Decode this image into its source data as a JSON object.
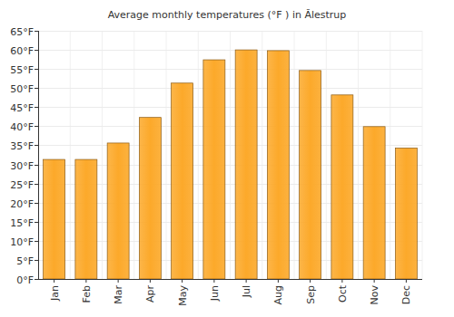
{
  "chart_data": {
    "type": "bar",
    "title": "Average monthly temperatures (°F ) in Ălestrup",
    "categories": [
      "Jan",
      "Feb",
      "Mar",
      "Apr",
      "May",
      "Jun",
      "Jul",
      "Aug",
      "Sep",
      "Oct",
      "Nov",
      "Dec"
    ],
    "values": [
      31.3,
      31.3,
      35.6,
      42.3,
      51.3,
      57.4,
      60.0,
      59.8,
      54.6,
      48.2,
      39.9,
      34.3
    ],
    "color": "#fca92a",
    "ylim": [
      0,
      65
    ],
    "yticks": [
      {
        "value": 0,
        "label": "0°F"
      },
      {
        "value": 5,
        "label": "5°F"
      },
      {
        "value": 10,
        "label": "10°F"
      },
      {
        "value": 15,
        "label": "15°F"
      },
      {
        "value": 20,
        "label": "20°F"
      },
      {
        "value": 25,
        "label": "25°F"
      },
      {
        "value": 30,
        "label": "30°F"
      },
      {
        "value": 35,
        "label": "35°F"
      },
      {
        "value": 40,
        "label": "40°F"
      },
      {
        "value": 45,
        "label": "45°F"
      },
      {
        "value": 50,
        "label": "50°F"
      },
      {
        "value": 55,
        "label": "55°F"
      },
      {
        "value": 60,
        "label": "60°F"
      },
      {
        "value": 65,
        "label": "65°F"
      }
    ],
    "grid": true
  }
}
